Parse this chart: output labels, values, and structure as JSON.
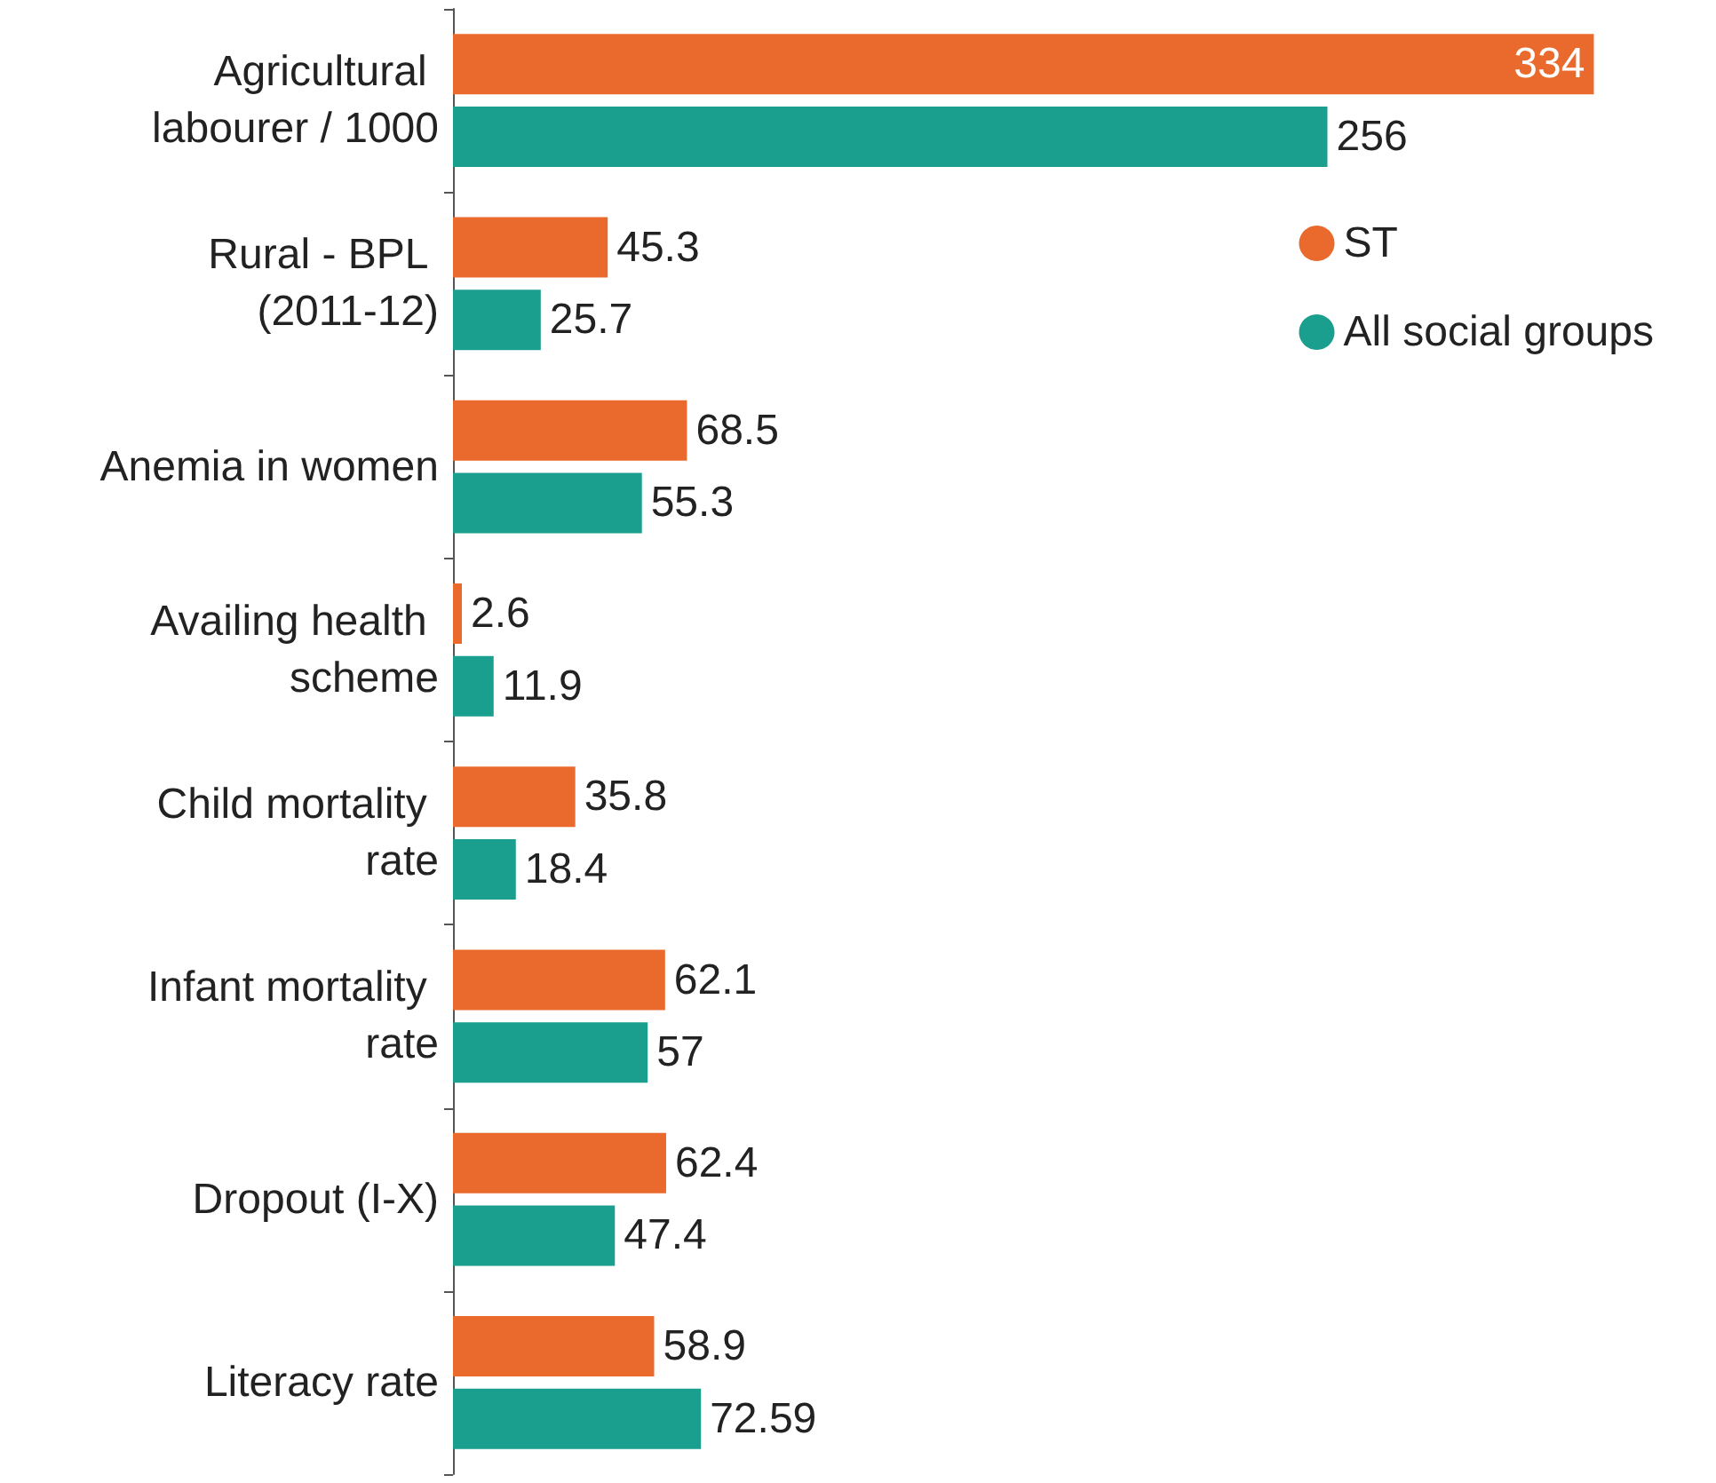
{
  "chart_data": {
    "type": "bar",
    "orientation": "horizontal",
    "categories": [
      "Agricultural labourer / 1000",
      "Rural - BPL (2011-12)",
      "Anemia in women",
      "Availing health scheme",
      "Child mortality rate",
      "Infant mortality rate",
      "Dropout (I-X)",
      "Literacy rate"
    ],
    "series": [
      {
        "name": "ST",
        "color": "#ea6a2e",
        "values": [
          334,
          45.3,
          68.5,
          2.6,
          35.8,
          62.1,
          62.4,
          58.9
        ]
      },
      {
        "name": "All social groups",
        "color": "#1a9e8e",
        "values": [
          256,
          25.7,
          55.3,
          11.9,
          18.4,
          57,
          47.4,
          72.59
        ]
      }
    ],
    "data_labels": true,
    "legend": "top right"
  }
}
